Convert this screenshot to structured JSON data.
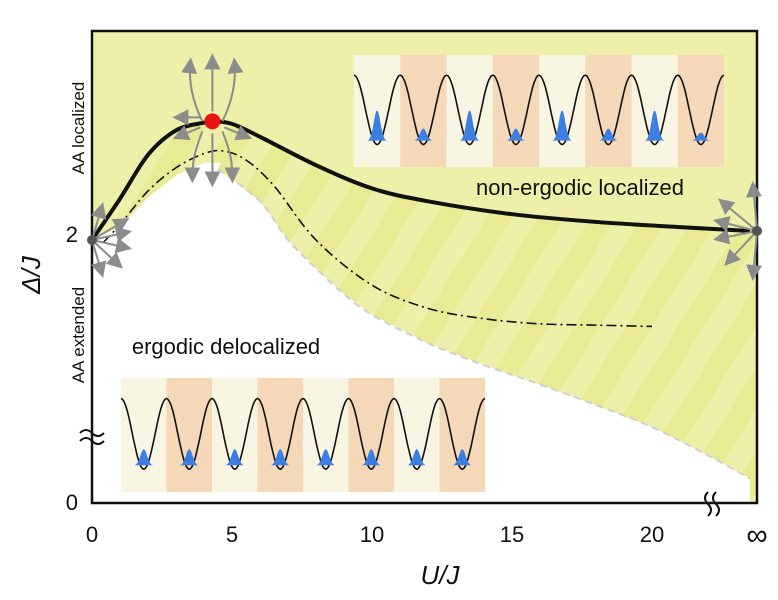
{
  "chart_data": {
    "type": "line",
    "title": "",
    "xlabel": "U/J",
    "ylabel": "Δ/J",
    "x_ticks": [
      "0",
      "5",
      "10",
      "15",
      "20",
      "∞"
    ],
    "y_ticks": [
      "0",
      "2"
    ],
    "series": [
      {
        "name": "phase boundary",
        "style": "solid",
        "x": [
          0,
          1,
          2,
          3,
          4,
          4.3,
          5,
          6,
          8,
          10,
          12,
          15,
          18,
          21,
          23.5
        ],
        "y": [
          2.0,
          2.32,
          2.66,
          2.85,
          2.91,
          2.92,
          2.9,
          2.8,
          2.58,
          2.4,
          2.3,
          2.2,
          2.14,
          2.1,
          2.07
        ]
      },
      {
        "name": "dash-dot crossover",
        "style": "dashdot",
        "x": [
          0.4,
          1,
          2,
          3,
          4,
          4.7,
          5.5,
          6.5,
          8,
          10,
          12,
          14,
          16,
          18,
          20
        ],
        "y": [
          1.98,
          2.12,
          2.38,
          2.56,
          2.67,
          2.69,
          2.62,
          2.42,
          2.0,
          1.65,
          1.47,
          1.39,
          1.35,
          1.34,
          1.33
        ]
      },
      {
        "name": "dashed grey boundary",
        "style": "dashed",
        "x": [
          4.5,
          6,
          7,
          8,
          9,
          10,
          12,
          14,
          16,
          18,
          20,
          22,
          23.5
        ],
        "y": [
          2.55,
          2.3,
          2.0,
          1.78,
          1.58,
          1.42,
          1.2,
          1.03,
          0.88,
          0.72,
          0.55,
          0.33,
          0.15
        ]
      }
    ],
    "critical_point": {
      "x": 4.3,
      "y": 2.92,
      "label": "red point"
    },
    "regions": [
      "non-ergodic localized",
      "ergodic delocalized"
    ],
    "side_labels": [
      "AA localized",
      "AA extended"
    ],
    "colors": {
      "background_fill": "#eef0a9",
      "stripe": "#e8eb93",
      "critical_point": "#ee1111",
      "wave_packet": "#3b7fe3",
      "panel_light": "#f9f5e3",
      "panel_orange": "#f4d8b8",
      "arrow": "#8c8c8c"
    }
  }
}
